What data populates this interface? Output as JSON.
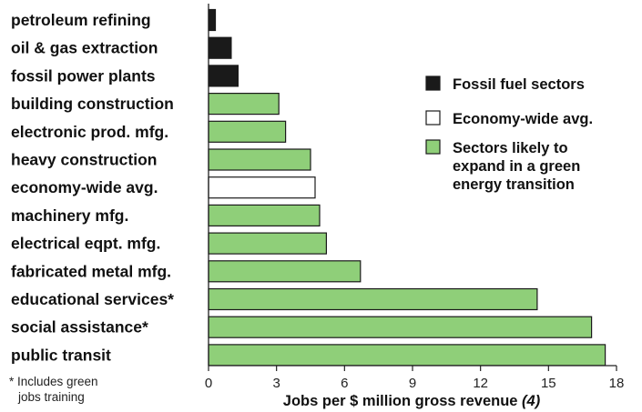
{
  "chart_data": {
    "type": "bar",
    "orientation": "horizontal",
    "categories": [
      "petroleum refining",
      "oil & gas extraction",
      "fossil power plants",
      "building construction",
      "electronic prod. mfg.",
      "heavy construction",
      "economy-wide avg.",
      "machinery mfg.",
      "electrical eqpt. mfg.",
      "fabricated metal mfg.",
      "educational services*",
      "social assistance*",
      "public transit"
    ],
    "values": [
      0.3,
      1.0,
      1.3,
      3.1,
      3.4,
      4.5,
      4.7,
      4.9,
      5.2,
      6.7,
      14.5,
      16.9,
      17.5
    ],
    "groups": [
      "fossil",
      "fossil",
      "fossil",
      "green",
      "green",
      "green",
      "average",
      "green",
      "green",
      "green",
      "green",
      "green",
      "green"
    ],
    "xlim": [
      0,
      18
    ],
    "xticks": [
      "0",
      "3",
      "6",
      "9",
      "12",
      "15",
      "18"
    ],
    "xlabel": "Jobs per $ million gross revenue",
    "xlabel_note": "(4)",
    "grid": false,
    "legend_position": "right",
    "legend": [
      {
        "key": "fossil",
        "label_lines": [
          "Fossil fuel sectors"
        ],
        "color": "#1a1a1a"
      },
      {
        "key": "average",
        "label_lines": [
          "Economy-wide avg."
        ],
        "color": "#ffffff"
      },
      {
        "key": "green",
        "label_lines": [
          "Sectors likely to",
          "expand in a green",
          "energy transition"
        ],
        "color": "#8fcf79"
      }
    ],
    "footnote_lines": [
      "* Includes green",
      "jobs training"
    ]
  }
}
